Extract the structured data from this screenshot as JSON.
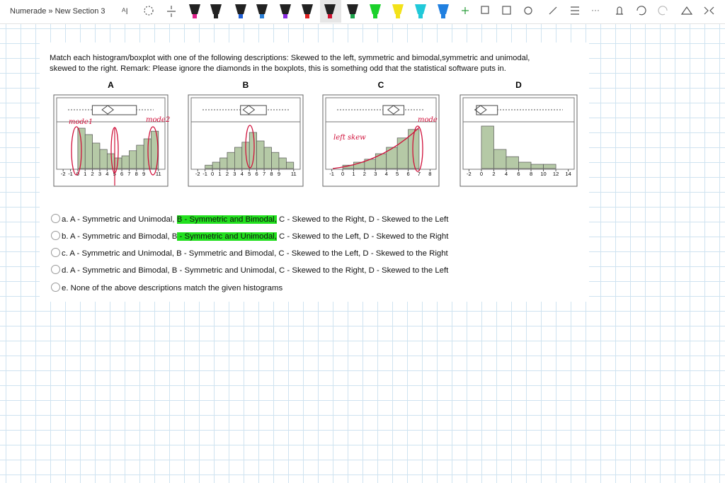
{
  "toolbar": {
    "breadcrumb": "Numerade » New Section 3"
  },
  "question": {
    "lines": [
      "Match each histogram/boxplot with one of the following descriptions: Skewed to the left, symmetric and bimodal,symmetric and unimodal,",
      "skewed to the right. Remark: Please ignore the diamonds in the boxplots, this is something odd that the statistical software puts in."
    ]
  },
  "figures": [
    {
      "label": "A",
      "xlim": [
        -2.5,
        11.5
      ],
      "ylim": [
        0,
        100
      ],
      "xticks": [
        -2,
        -1,
        0,
        1,
        2,
        3,
        4,
        5,
        6,
        7,
        8,
        9,
        11
      ],
      "bins": [
        0,
        1,
        2,
        3,
        4,
        5,
        6,
        7,
        8,
        9,
        10,
        11
      ],
      "counts": [
        95,
        80,
        60,
        45,
        35,
        25,
        30,
        42,
        55,
        70,
        88
      ]
    },
    {
      "label": "B",
      "xlim": [
        -2.5,
        11.5
      ],
      "ylim": [
        0,
        100
      ],
      "xticks": [
        -2,
        -1,
        0,
        1,
        2,
        3,
        4,
        5,
        6,
        7,
        8,
        9,
        11
      ],
      "bins": [
        -1,
        0,
        1,
        2,
        3,
        4,
        5,
        6,
        7,
        8,
        9,
        10,
        11
      ],
      "counts": [
        8,
        15,
        25,
        38,
        50,
        62,
        85,
        65,
        50,
        38,
        25,
        15
      ]
    },
    {
      "label": "C",
      "xlim": [
        -1.3,
        8.3
      ],
      "ylim": [
        0,
        100
      ],
      "xticks": [
        -1,
        0,
        1,
        2,
        3,
        4,
        5,
        6,
        7,
        8
      ],
      "bins": [
        0,
        1,
        2,
        3,
        4,
        5,
        6,
        7
      ],
      "counts": [
        8,
        15,
        22,
        35,
        50,
        72,
        92
      ]
    },
    {
      "label": "D",
      "xlim": [
        -2.5,
        14.5
      ],
      "ylim": [
        0,
        100
      ],
      "xticks": [
        -2,
        0,
        2,
        4,
        6,
        8,
        10,
        12,
        14
      ],
      "bins": [
        0,
        2,
        4,
        6,
        8,
        10,
        12
      ],
      "counts": [
        100,
        45,
        28,
        15,
        10,
        10
      ]
    }
  ],
  "annotations": [
    "mode1",
    "mode2",
    "left skew",
    "mode"
  ],
  "options": [
    {
      "letter": "a.",
      "parts": [
        {
          "text": "A - Symmetric and Unimodal, "
        },
        {
          "text": "B - Symmetric and Bimodal,",
          "highlight": true
        },
        {
          "text": " C - Skewed to the Right, D - Skewed to the Left"
        }
      ]
    },
    {
      "letter": "b.",
      "parts": [
        {
          "text": "A - Symmetric and Bimodal, B"
        },
        {
          "text": " - Symmetric and Unimodal,",
          "highlight": true
        },
        {
          "text": " C - Skewed to the Left, D - Skewed to the Right"
        }
      ]
    },
    {
      "letter": "c.",
      "parts": [
        {
          "text": "A - Symmetric and Unimodal, B - Symmetric and Bimodal, C - Skewed to the Left, D - Skewed to the Right"
        }
      ]
    },
    {
      "letter": "d.",
      "parts": [
        {
          "text": "A - Symmetric and Bimodal, B - Symmetric and Unimodal, C - Skewed to the Right, D - Skewed to the Left"
        }
      ]
    },
    {
      "letter": "e.",
      "parts": [
        {
          "text": "None of the above descriptions match the given histograms"
        }
      ]
    }
  ]
}
